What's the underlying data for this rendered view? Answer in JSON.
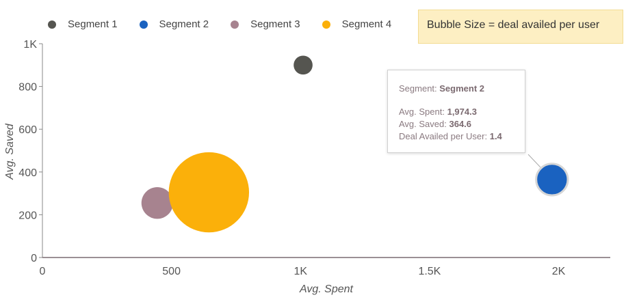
{
  "chart_data": {
    "type": "scatter",
    "subtype": "bubble",
    "xlabel": "Avg. Spent",
    "ylabel": "Avg. Saved",
    "xlim": [
      0,
      2200
    ],
    "ylim": [
      0,
      1000
    ],
    "x_ticks": [
      0,
      500,
      1000,
      1500,
      2000
    ],
    "x_tick_labels": [
      "0",
      "500",
      "1K",
      "1.5K",
      "2K"
    ],
    "y_ticks": [
      0,
      200,
      400,
      600,
      800,
      1000
    ],
    "y_tick_labels": [
      "0",
      "200",
      "400",
      "600",
      "800",
      "1K"
    ],
    "legend_position": "top-left",
    "series": [
      {
        "name": "Segment 1",
        "color": "#555550",
        "x": 1010,
        "y": 900,
        "size": 0.5
      },
      {
        "name": "Segment 2",
        "color": "#1a62c0",
        "x": 1974.3,
        "y": 364.6,
        "size": 1.4
      },
      {
        "name": "Segment 3",
        "color": "#a7838f",
        "x": 445,
        "y": 255,
        "size": 1.4
      },
      {
        "name": "Segment 4",
        "color": "#fbb00a",
        "x": 645,
        "y": 305,
        "size": 9.0
      }
    ],
    "annotation": "Bubble Size = deal availed per user",
    "tooltip": {
      "segment_label": "Segment: ",
      "segment_value": "Segment 2",
      "spent_label": "Avg. Spent: ",
      "spent_value": "1,974.3",
      "saved_label": "Avg. Saved: ",
      "saved_value": "364.6",
      "deal_label": "Deal Availed per User: ",
      "deal_value": "1.4"
    }
  }
}
